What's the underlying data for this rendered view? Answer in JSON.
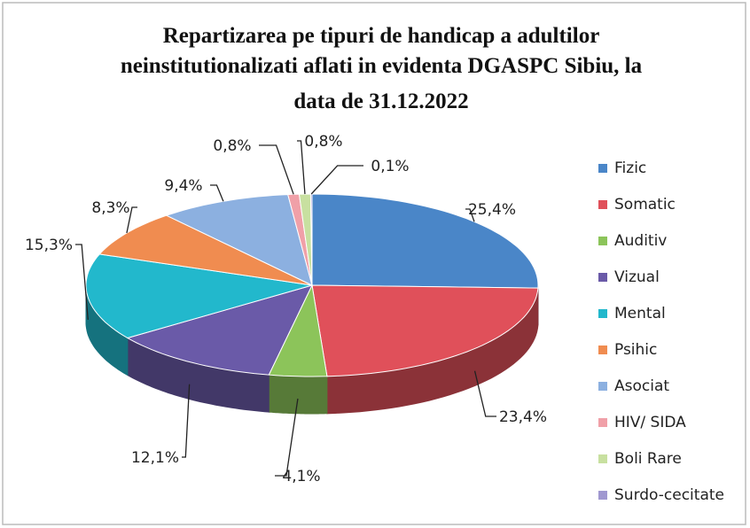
{
  "chart_data": {
    "type": "pie",
    "title": [
      "Repartizarea pe tipuri de handicap a adultilor",
      "neinstitutionalizati aflati in evidenta DGASPC Sibiu, la",
      "data de 31.12.2022"
    ],
    "categories": [
      "Fizic",
      "Somatic",
      "Auditiv",
      "Vizual",
      "Mental",
      "Psihic",
      "Asociat",
      "HIV/ SIDA",
      "Boli Rare",
      "Surdo-cecitate"
    ],
    "values": [
      25.4,
      23.4,
      4.1,
      12.1,
      15.3,
      8.3,
      9.4,
      0.8,
      0.8,
      0.1
    ],
    "value_labels": [
      "25,4%",
      "23,4%",
      "4,1%",
      "12,1%",
      "15,3%",
      "8,3%",
      "9,4%",
      "0,8%",
      "0,8%",
      "0,1%"
    ],
    "colors": [
      "#4a86c8",
      "#e0505a",
      "#8cc45a",
      "#6a5aa8",
      "#22b8cc",
      "#f08c50",
      "#8cb0e0",
      "#f0a0a8",
      "#c8e0a0",
      "#a098d0"
    ],
    "legend": "right"
  }
}
